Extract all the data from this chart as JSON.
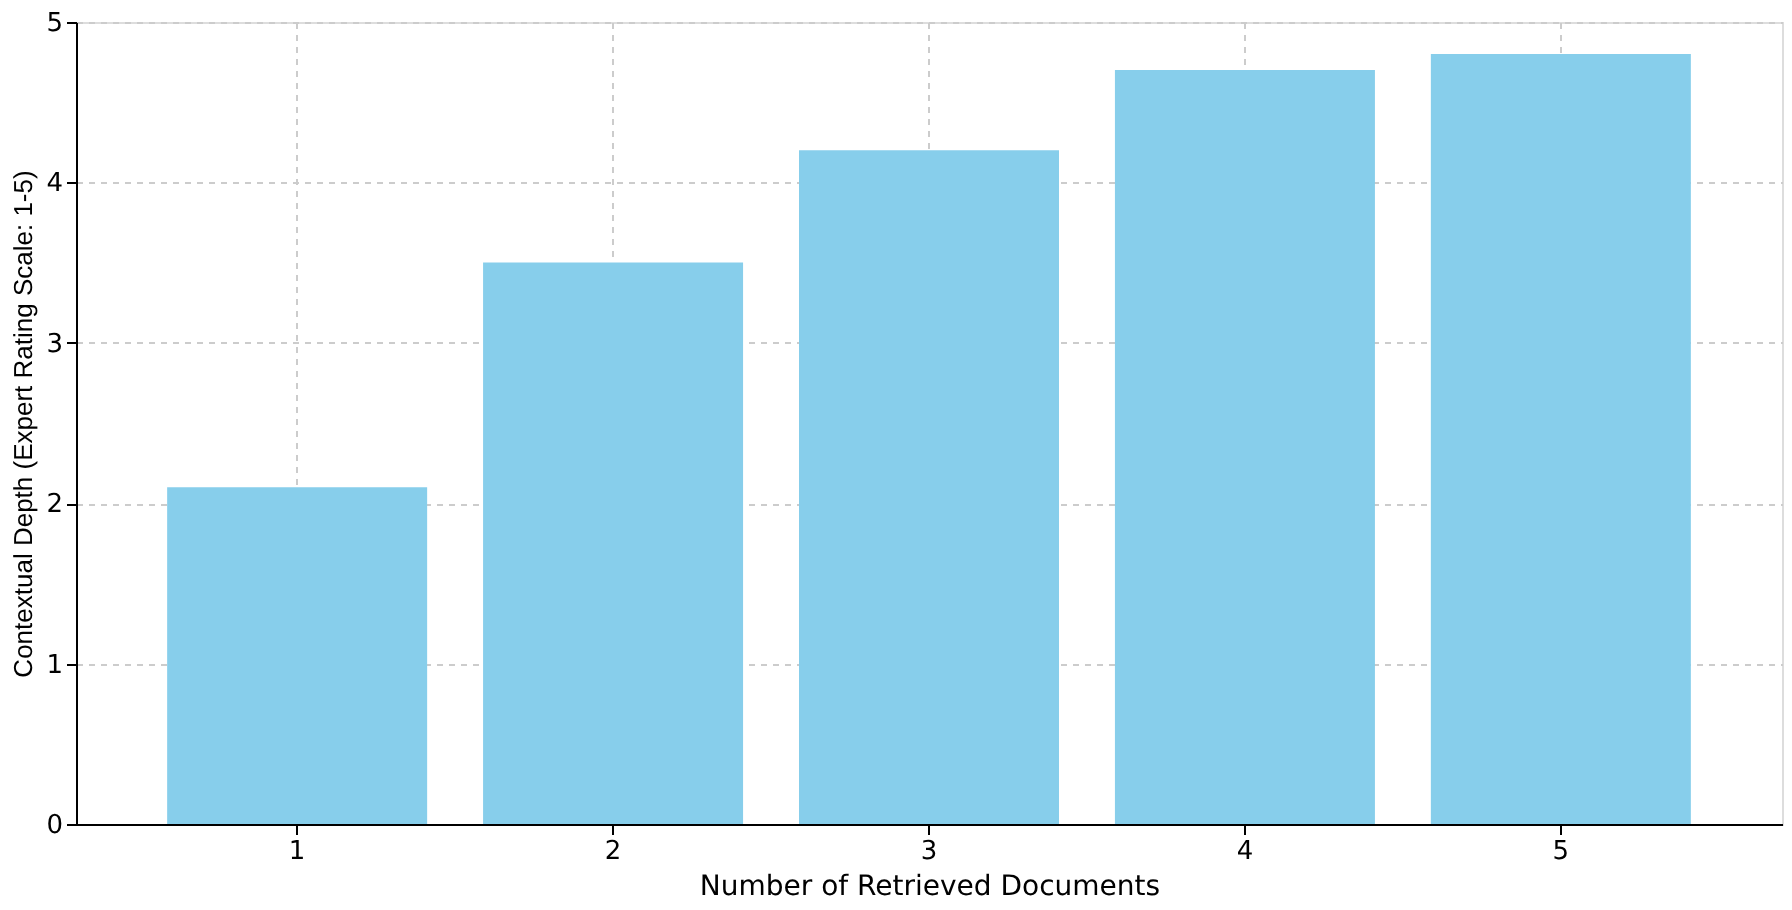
{
  "chart_data": {
    "type": "bar",
    "xlabel": "Number of Retrieved Documents",
    "ylabel": "Contextual Depth (Expert Rating Scale: 1-5)",
    "categories": [
      "1",
      "2",
      "3",
      "4",
      "5"
    ],
    "values": [
      2.1,
      3.5,
      4.2,
      4.7,
      4.8
    ],
    "color": "#87ceeb",
    "ylim": [
      0,
      5
    ],
    "yticks": [
      0,
      1,
      2,
      3,
      4,
      5
    ],
    "grid": true
  }
}
